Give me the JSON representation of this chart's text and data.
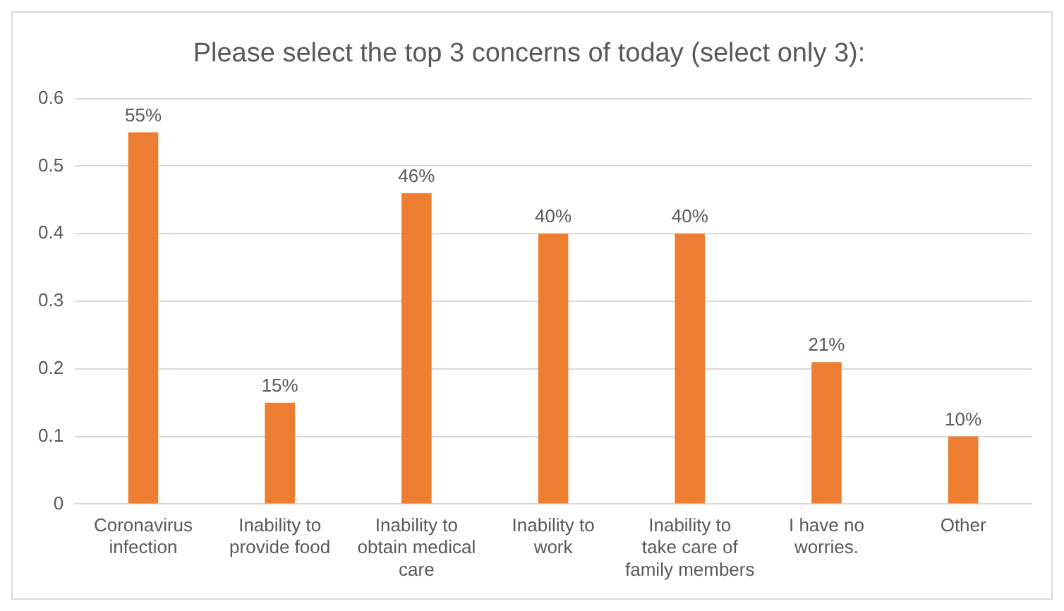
{
  "chart_data": {
    "type": "bar",
    "title": "Please select the top 3 concerns of today (select only 3):",
    "categories": [
      "Coronavirus infection",
      "Inability to provide food",
      "Inability to obtain medical care",
      "Inability to work",
      "Inability to take care of family members",
      "I have no worries.",
      "Other"
    ],
    "values": [
      0.55,
      0.15,
      0.46,
      0.4,
      0.4,
      0.21,
      0.1
    ],
    "value_labels": [
      "55%",
      "15%",
      "46%",
      "40%",
      "40%",
      "21%",
      "10%"
    ],
    "color": "#ed7d31",
    "ylim": [
      0,
      0.6
    ],
    "yticks": [
      0,
      0.1,
      0.2,
      0.3,
      0.4,
      0.5,
      0.6
    ],
    "grid": "y",
    "legend": false
  }
}
